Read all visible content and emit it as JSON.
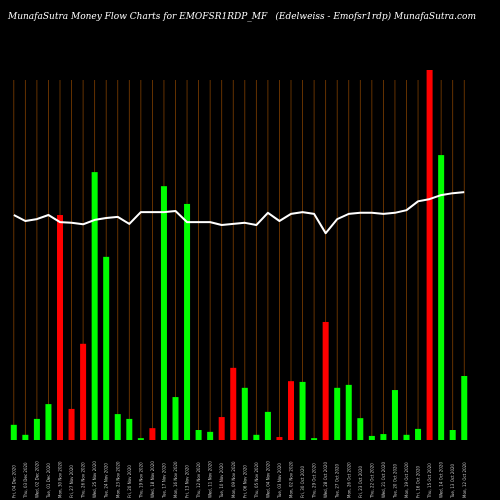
{
  "header": {
    "left": "MunafaSutra  Money Flow  Charts for EMOFSR1RDP_MF",
    "right": "(Edelweiss -  Emofsr1rdp) MunafaSutra.com"
  },
  "colors": {
    "background": "#000000",
    "vertical_grid": "#7a3c00",
    "up_bar": "#00ff00",
    "down_bar": "#ff0000",
    "line": "#ffffff"
  },
  "chart_data": {
    "type": "bar",
    "grid": "vertical",
    "bar_ylim": [
      0,
      100
    ],
    "line_ylim": [
      0,
      100
    ],
    "categories": [
      "Fri, 04 Dec 2020",
      "Thu, 03 Dec 2020",
      "Wed, 02 Dec 2020",
      "Tue, 01 Dec 2020",
      "Mon, 30 Nov 2020",
      "Fri, 27 Nov 2020",
      "Thu, 26 Nov 2020",
      "Wed, 25 Nov 2020",
      "Tue, 24 Nov 2020",
      "Mon, 23 Nov 2020",
      "Fri, 20 Nov 2020",
      "Thu, 19 Nov 2020",
      "Wed, 18 Nov 2020",
      "Tue, 17 Nov 2020",
      "Mon, 16 Nov 2020",
      "Fri, 13 Nov 2020",
      "Thu, 12 Nov 2020",
      "Wed, 11 Nov 2020",
      "Tue, 10 Nov 2020",
      "Mon, 09 Nov 2020",
      "Fri, 06 Nov 2020",
      "Thu, 05 Nov 2020",
      "Wed, 04 Nov 2020",
      "Tue, 03 Nov 2020",
      "Mon, 02 Nov 2020",
      "Fri, 30 Oct 2020",
      "Thu, 29 Oct 2020",
      "Wed, 28 Oct 2020",
      "Tue, 27 Oct 2020",
      "Mon, 26 Oct 2020",
      "Fri, 23 Oct 2020",
      "Thu, 22 Oct 2020",
      "Wed, 21 Oct 2020",
      "Tue, 20 Oct 2020",
      "Mon, 19 Oct 2020",
      "Fri, 16 Oct 2020",
      "Thu, 15 Oct 2020",
      "Wed, 14 Oct 2020",
      "Tue, 13 Oct 2020",
      "Mon, 12 Oct 2020"
    ],
    "bars": [
      {
        "value": 4.1,
        "direction": "up"
      },
      {
        "value": 1.4,
        "direction": "up"
      },
      {
        "value": 5.7,
        "direction": "up"
      },
      {
        "value": 9.7,
        "direction": "up"
      },
      {
        "value": 60.8,
        "direction": "down"
      },
      {
        "value": 8.4,
        "direction": "down"
      },
      {
        "value": 26.0,
        "direction": "down"
      },
      {
        "value": 72.4,
        "direction": "up"
      },
      {
        "value": 49.5,
        "direction": "up"
      },
      {
        "value": 7.0,
        "direction": "up"
      },
      {
        "value": 5.7,
        "direction": "up"
      },
      {
        "value": 0.5,
        "direction": "up"
      },
      {
        "value": 3.2,
        "direction": "down"
      },
      {
        "value": 68.6,
        "direction": "up"
      },
      {
        "value": 11.6,
        "direction": "up"
      },
      {
        "value": 63.8,
        "direction": "up"
      },
      {
        "value": 2.7,
        "direction": "up"
      },
      {
        "value": 2.2,
        "direction": "up"
      },
      {
        "value": 6.2,
        "direction": "down"
      },
      {
        "value": 19.5,
        "direction": "down"
      },
      {
        "value": 14.1,
        "direction": "up"
      },
      {
        "value": 1.4,
        "direction": "up"
      },
      {
        "value": 7.6,
        "direction": "up"
      },
      {
        "value": 0.8,
        "direction": "down"
      },
      {
        "value": 15.9,
        "direction": "down"
      },
      {
        "value": 15.7,
        "direction": "up"
      },
      {
        "value": 0.5,
        "direction": "up"
      },
      {
        "value": 31.9,
        "direction": "down"
      },
      {
        "value": 14.1,
        "direction": "up"
      },
      {
        "value": 14.9,
        "direction": "up"
      },
      {
        "value": 5.9,
        "direction": "up"
      },
      {
        "value": 1.1,
        "direction": "up"
      },
      {
        "value": 1.6,
        "direction": "up"
      },
      {
        "value": 13.5,
        "direction": "up"
      },
      {
        "value": 1.4,
        "direction": "up"
      },
      {
        "value": 3.0,
        "direction": "up"
      },
      {
        "value": 100.0,
        "direction": "down"
      },
      {
        "value": 77.0,
        "direction": "up"
      },
      {
        "value": 2.7,
        "direction": "up"
      },
      {
        "value": 17.3,
        "direction": "up"
      }
    ],
    "line": [
      60.8,
      59.2,
      59.7,
      60.8,
      58.9,
      58.7,
      58.3,
      59.5,
      60.0,
      60.3,
      58.4,
      61.6,
      61.6,
      61.6,
      61.9,
      58.9,
      58.9,
      58.9,
      58.1,
      58.4,
      58.7,
      58.1,
      61.4,
      59.2,
      61.1,
      61.6,
      61.1,
      55.9,
      59.7,
      61.1,
      61.4,
      61.4,
      61.1,
      61.4,
      62.1,
      64.5,
      65.1,
      66.2,
      66.7,
      67.0
    ]
  }
}
